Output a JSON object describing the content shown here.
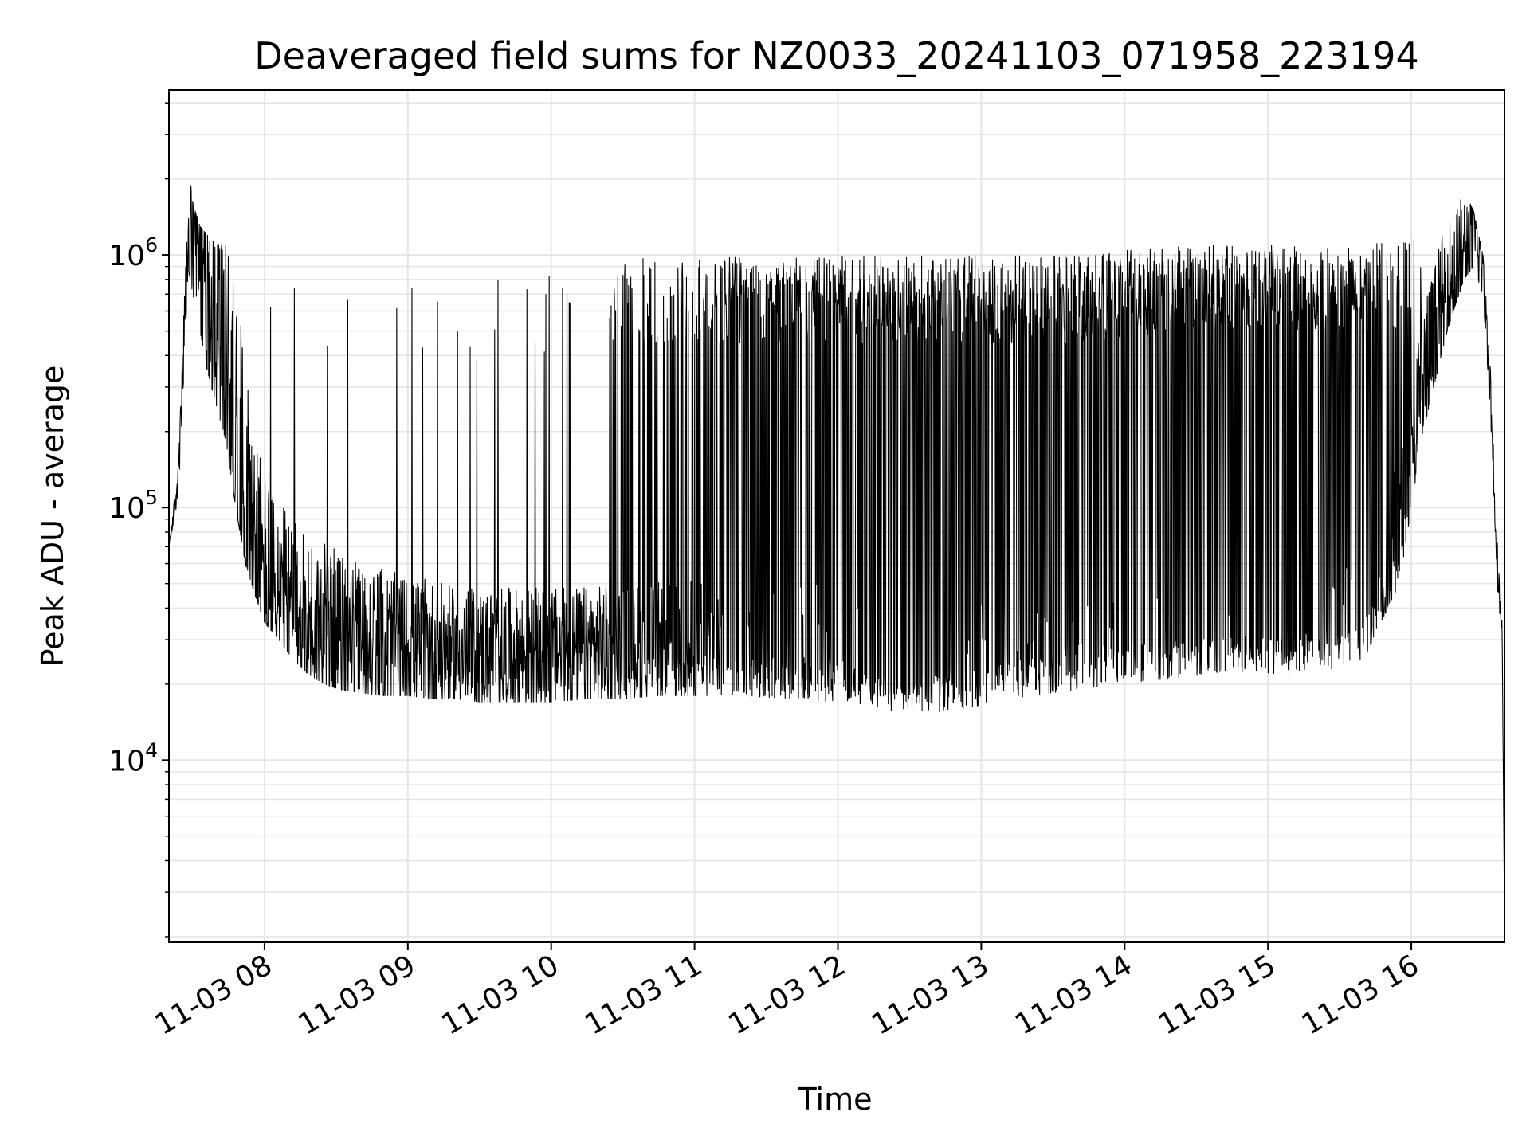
{
  "chart_data": {
    "type": "line",
    "title": "Deaveraged field sums for NZ0033_20241103_071958_223194",
    "xlabel": "Time",
    "ylabel": "Peak ADU - average",
    "yscale": "log",
    "ylim": [
      1900,
      4500000
    ],
    "xlim": [
      "2024-11-03 07:20",
      "2024-11-03 16:39"
    ],
    "grid": true,
    "x_ticks": [
      {
        "value": "2024-11-03 08:00",
        "label": "11-03 08"
      },
      {
        "value": "2024-11-03 09:00",
        "label": "11-03 09"
      },
      {
        "value": "2024-11-03 10:00",
        "label": "11-03 10"
      },
      {
        "value": "2024-11-03 11:00",
        "label": "11-03 11"
      },
      {
        "value": "2024-11-03 12:00",
        "label": "11-03 12"
      },
      {
        "value": "2024-11-03 13:00",
        "label": "11-03 13"
      },
      {
        "value": "2024-11-03 14:00",
        "label": "11-03 14"
      },
      {
        "value": "2024-11-03 15:00",
        "label": "11-03 15"
      },
      {
        "value": "2024-11-03 16:00",
        "label": "11-03 16"
      }
    ],
    "y_ticks": [
      {
        "value": 10000,
        "base": "10",
        "exp": "4"
      },
      {
        "value": 100000,
        "base": "10",
        "exp": "5"
      },
      {
        "value": 1000000,
        "base": "10",
        "exp": "6"
      }
    ],
    "series": [
      {
        "color": "#000000",
        "x": [
          "2024-11-03 07:20",
          "2024-11-03 07:24",
          "2024-11-03 07:27",
          "2024-11-03 07:28",
          "2024-11-03 07:30",
          "2024-11-03 07:33",
          "2024-11-03 07:36",
          "2024-11-03 07:40",
          "2024-11-03 07:44",
          "2024-11-03 07:48",
          "2024-11-03 07:52",
          "2024-11-03 07:56",
          "2024-11-03 08:00",
          "2024-11-03 08:06",
          "2024-11-03 08:12",
          "2024-11-03 08:18",
          "2024-11-03 08:25",
          "2024-11-03 08:32",
          "2024-11-03 08:40",
          "2024-11-03 08:50",
          "2024-11-03 09:00",
          "2024-11-03 09:10",
          "2024-11-03 09:20",
          "2024-11-03 09:30",
          "2024-11-03 09:40",
          "2024-11-03 09:50",
          "2024-11-03 10:00",
          "2024-11-03 10:15",
          "2024-11-03 10:30",
          "2024-11-03 10:45",
          "2024-11-03 11:00",
          "2024-11-03 11:20",
          "2024-11-03 11:40",
          "2024-11-03 12:00",
          "2024-11-03 12:15",
          "2024-11-03 12:30",
          "2024-11-03 12:45",
          "2024-11-03 13:00",
          "2024-11-03 13:20",
          "2024-11-03 13:40",
          "2024-11-03 14:00",
          "2024-11-03 14:20",
          "2024-11-03 14:40",
          "2024-11-03 15:00",
          "2024-11-03 15:20",
          "2024-11-03 15:40",
          "2024-11-03 15:55",
          "2024-11-03 16:05",
          "2024-11-03 16:15",
          "2024-11-03 16:22",
          "2024-11-03 16:26",
          "2024-11-03 16:30",
          "2024-11-03 16:33",
          "2024-11-03 16:36",
          "2024-11-03 16:38",
          "2024-11-03 16:39"
        ],
        "y": [
          70000,
          130000,
          600000,
          1000000,
          1100000,
          900000,
          700000,
          500000,
          350000,
          200000,
          120000,
          70000,
          50000,
          42000,
          38000,
          35000,
          33000,
          31000,
          30000,
          29000,
          28000,
          27500,
          27000,
          27000,
          27000,
          27000,
          27000,
          27500,
          28000,
          28500,
          29000,
          29000,
          28500,
          28000,
          27500,
          27000,
          27000,
          27000,
          28000,
          29000,
          30000,
          31000,
          32000,
          33000,
          35000,
          40000,
          80000,
          300000,
          700000,
          1000000,
          1200000,
          900000,
          300000,
          60000,
          30000,
          2500
        ],
        "spike_top": [
          70000,
          150000,
          1500000,
          3000000,
          1600000,
          1300000,
          1200000,
          1100000,
          1100000,
          1100000,
          1000000,
          1000000,
          950000,
          900000,
          850000,
          800000,
          780000,
          760000,
          750000,
          750000,
          760000,
          780000,
          800000,
          820000,
          850000,
          880000,
          900000,
          930000,
          960000,
          990000,
          1000000,
          1000000,
          1000000,
          1000000,
          1000000,
          1000000,
          1000000,
          1000000,
          1000000,
          1000000,
          1050000,
          1100000,
          1100000,
          1100000,
          1100000,
          1100000,
          1150000,
          1200000,
          1400000,
          1800000,
          1500000,
          1000000,
          400000,
          80000,
          35000,
          3000
        ],
        "spike_bottom": [
          70000,
          110000,
          500000,
          900000,
          700000,
          500000,
          350000,
          250000,
          180000,
          100000,
          60000,
          45000,
          35000,
          30000,
          25000,
          22000,
          20000,
          19000,
          18500,
          18000,
          18000,
          17500,
          17500,
          17000,
          17000,
          17000,
          17000,
          17500,
          17500,
          18000,
          18000,
          18000,
          17500,
          17000,
          16000,
          15000,
          15500,
          16500,
          18000,
          19000,
          20000,
          21000,
          22000,
          22000,
          22000,
          25000,
          50000,
          200000,
          500000,
          800000,
          900000,
          700000,
          250000,
          50000,
          25000,
          2500
        ],
        "spike_density": [
          0,
          0,
          0,
          0,
          0,
          0,
          0,
          0,
          0,
          0,
          0,
          0,
          0.01,
          0.01,
          0.01,
          0.02,
          0.02,
          0.02,
          0.02,
          0.02,
          0.02,
          0.02,
          0.02,
          0.02,
          0.02,
          0.02,
          0.03,
          0.05,
          0.1,
          0.25,
          0.35,
          0.45,
          0.5,
          0.55,
          0.6,
          0.65,
          0.6,
          0.55,
          0.55,
          0.55,
          0.6,
          0.6,
          0.6,
          0.65,
          0.55,
          0.5,
          0.3,
          0,
          0,
          0,
          0,
          0,
          0,
          0,
          0,
          0
        ],
        "noise_band": [
          0.05,
          0.15,
          0.4,
          0.5,
          0.7,
          0.8,
          0.9,
          1.0,
          1.1,
          1.1,
          1.1,
          1.0,
          0.9,
          0.8,
          0.75,
          0.7,
          0.7,
          0.65,
          0.6,
          0.6,
          0.55,
          0.55,
          0.5,
          0.5,
          0.5,
          0.5,
          0.5,
          0.5,
          0.5,
          0.5,
          0.5,
          0.5,
          0.5,
          0.5,
          0.5,
          0.55,
          0.55,
          0.5,
          0.5,
          0.5,
          0.5,
          0.5,
          0.5,
          0.5,
          0.5,
          0.55,
          0.6,
          0.7,
          0.6,
          0.5,
          0.5,
          0.4,
          0.3,
          0.2,
          0.15,
          0.05
        ]
      }
    ]
  }
}
